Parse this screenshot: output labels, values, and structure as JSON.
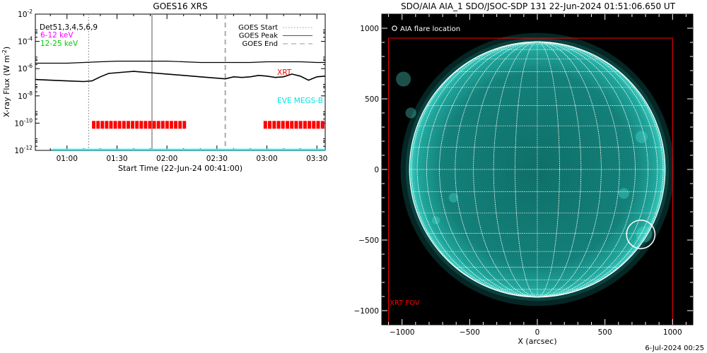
{
  "footer_timestamp": "6-Jul-2024 00:25",
  "chart_data": [
    {
      "type": "line",
      "title": "GOES16 XRS",
      "xlabel": "Start Time (22-Jun-24 00:41:00)",
      "ylabel": "X-ray Flux (W m",
      "ylabel_sup": "-2",
      "ylabel_close": ")",
      "x_axis": {
        "type": "time",
        "start": "00:41",
        "end": "03:35"
      },
      "x_ticks": [
        "01:00",
        "01:30",
        "02:00",
        "02:30",
        "03:00",
        "03:30"
      ],
      "y_scale": "log",
      "ylim": [
        1e-12,
        0.01
      ],
      "y_ticks": [
        {
          "value": -12,
          "base": "10",
          "exp": "-12"
        },
        {
          "value": -10,
          "base": "10",
          "exp": "-10"
        },
        {
          "value": -8,
          "base": "10",
          "exp": "-8"
        },
        {
          "value": -6,
          "base": "10",
          "exp": "-6"
        },
        {
          "value": -4,
          "base": "10",
          "exp": "-4"
        },
        {
          "value": -2,
          "base": "10",
          "exp": "-2"
        }
      ],
      "det_label": "Det51,3,4,5,6,9",
      "band_labels": [
        {
          "text": "6-12 keV",
          "color": "#ff00ff"
        },
        {
          "text": "12-25 keV",
          "color": "#00cc00"
        }
      ],
      "legend": [
        {
          "label": "GOES Start",
          "style": "dotted"
        },
        {
          "label": "GOES Peak",
          "style": "solid"
        },
        {
          "label": "GOES End",
          "style": "dashed"
        }
      ],
      "markers": [
        {
          "name": "goes-start",
          "time": "01:13",
          "style": "dotted",
          "color": "#888888"
        },
        {
          "name": "goes-peak",
          "time": "01:51",
          "style": "solid",
          "color": "#aaaaaa"
        },
        {
          "name": "goes-end",
          "time": "02:35",
          "style": "dashed",
          "color": "#aaaaaa"
        }
      ],
      "series": [
        {
          "key": "upper",
          "color": "#000000",
          "x": [
            "00:41",
            "00:50",
            "01:00",
            "01:10",
            "01:20",
            "01:30",
            "01:40",
            "01:50",
            "02:00",
            "02:10",
            "02:20",
            "02:30",
            "02:40",
            "02:50",
            "03:00",
            "03:10",
            "03:20",
            "03:30",
            "03:35"
          ],
          "log_values": [
            -5.6,
            -5.6,
            -5.6,
            -5.55,
            -5.5,
            -5.45,
            -5.45,
            -5.45,
            -5.45,
            -5.5,
            -5.55,
            -5.55,
            -5.55,
            -5.55,
            -5.5,
            -5.5,
            -5.5,
            -5.55,
            -5.55
          ]
        },
        {
          "key": "lower",
          "color": "#000000",
          "x": [
            "00:41",
            "00:50",
            "01:00",
            "01:10",
            "01:15",
            "01:20",
            "01:25",
            "01:30",
            "01:35",
            "01:40",
            "01:50",
            "02:00",
            "02:10",
            "02:20",
            "02:30",
            "02:35",
            "02:40",
            "02:45",
            "02:50",
            "02:55",
            "03:00",
            "03:05",
            "03:10",
            "03:15",
            "03:20",
            "03:25",
            "03:30",
            "03:35"
          ],
          "log_values": [
            -6.8,
            -6.85,
            -6.9,
            -6.95,
            -6.9,
            -6.6,
            -6.35,
            -6.3,
            -6.25,
            -6.2,
            -6.3,
            -6.4,
            -6.5,
            -6.6,
            -6.7,
            -6.75,
            -6.6,
            -6.65,
            -6.6,
            -6.5,
            -6.55,
            -6.65,
            -6.6,
            -6.4,
            -6.55,
            -6.85,
            -6.6,
            -6.55
          ]
        }
      ],
      "xrt": {
        "label": "XRT",
        "color": "#ff0000",
        "log_level": -10.1,
        "segments": [
          [
            "01:15",
            "02:12"
          ],
          [
            "02:58",
            "03:35"
          ]
        ]
      },
      "eve": {
        "label": "EVE MEGS-B",
        "color": "#00ffff",
        "log_level": -11.95,
        "segments": [
          [
            "00:51",
            "03:35"
          ]
        ]
      }
    },
    {
      "type": "image",
      "title": "SDO/AIA AIA_1 SDO/JSOC-SDP 131 22-Jun-2024 01:51:06.650 UT",
      "xlabel": "X (arcsec)",
      "xlim": [
        -1150,
        1150
      ],
      "ylim": [
        -1100,
        1100
      ],
      "x_ticks": [
        -1000,
        -500,
        0,
        500,
        1000
      ],
      "y_ticks": [
        -1000,
        -500,
        0,
        500,
        1000
      ],
      "x_tick_labels": [
        "−1000",
        "−500",
        "0",
        "500",
        "1000"
      ],
      "y_tick_labels": [
        "−1000",
        "−500",
        "0",
        "500",
        "1000"
      ],
      "flare_legend": "AIA flare location",
      "xrt_fov_label": "XRT FOV",
      "xrt_fov": {
        "x": [
          -1100,
          1000
        ],
        "y": [
          -1100,
          930
        ]
      },
      "solar_radius": 945,
      "flare_location": {
        "x": 765,
        "y": -460,
        "r": 105
      },
      "grid_spacing_deg": 10,
      "colors": {
        "disk": "#1f9c93",
        "grid": "#ffffff",
        "fov": "#ff0000",
        "background": "#000000"
      }
    }
  ]
}
